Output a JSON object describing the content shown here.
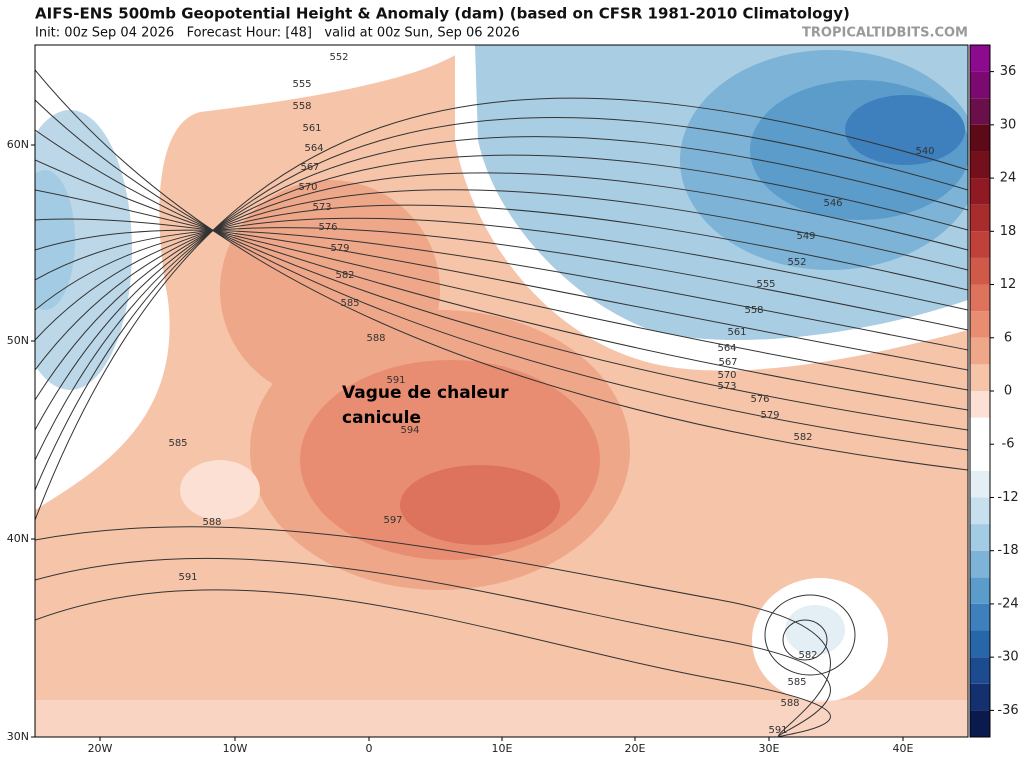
{
  "header": {
    "title": "AIFS-ENS 500mb Geopotential Height & Anomaly (dam) (based on CFSR 1981-2010 Climatology)",
    "subtitle": "Init: 00z Sep 04 2026   Forecast Hour: [48]   valid at 00z Sun, Sep 06 2026",
    "credit": "TROPICALTIDBITS.COM"
  },
  "map": {
    "lat_labels": [
      "60N",
      "50N",
      "40N",
      "30N"
    ],
    "lon_labels": [
      "20W",
      "10W",
      "0",
      "10E",
      "20E",
      "30E",
      "40E"
    ],
    "contour_labels": [
      552,
      555,
      558,
      561,
      564,
      567,
      570,
      573,
      576,
      579,
      582,
      585,
      588,
      591,
      594,
      597,
      585,
      588,
      591,
      540,
      546,
      549,
      552,
      555,
      558,
      561,
      564,
      567,
      570,
      573,
      576,
      579,
      582,
      582,
      585,
      588,
      591
    ],
    "annotation": [
      "Vague de chaleur",
      "canicule"
    ]
  },
  "colorbar": {
    "clim": [
      -39,
      39
    ],
    "ticks": [
      36,
      30,
      24,
      18,
      12,
      6,
      0,
      -6,
      -12,
      -18,
      -24,
      -30,
      -36
    ],
    "colors": [
      "#0b1a4d",
      "#14306e",
      "#1c4c8f",
      "#2766a8",
      "#3d80bd",
      "#5b9ccb",
      "#7cb3d7",
      "#a3cbe3",
      "#c8e0ee",
      "#e3eef5",
      "#ffffff",
      "#ffffff",
      "#fbe0d3",
      "#f6c4a9",
      "#efa78a",
      "#e98d72",
      "#dd735d",
      "#cf5a4a",
      "#bf4139",
      "#a92c2d",
      "#8f1a24",
      "#74101c",
      "#5c0a18",
      "#6b0f4a",
      "#7a0a70",
      "#8b0a8e"
    ]
  }
}
